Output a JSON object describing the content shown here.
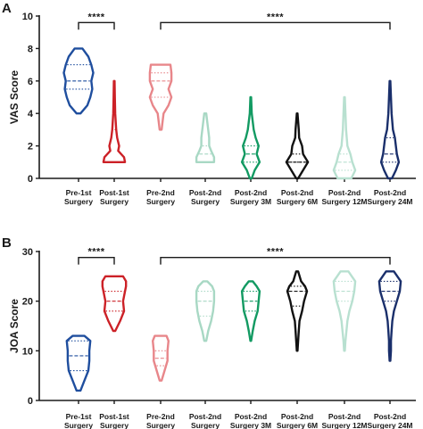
{
  "chart_data": [
    {
      "type": "violin",
      "panel": "A",
      "ylabel": "VAS Score",
      "ylim": [
        0,
        10
      ],
      "yticks": [
        "0",
        "2",
        "4",
        "6",
        "8",
        "10"
      ],
      "categories": [
        [
          "Pre-1st",
          "Surgery"
        ],
        [
          "Post-1st",
          "Surgery"
        ],
        [
          "Pre-2nd",
          "Surgery"
        ],
        [
          "Post-2nd",
          "Surgery"
        ],
        [
          "Post-2nd",
          "Surgery 3M"
        ],
        [
          "Post-2nd",
          "Surgery 6M"
        ],
        [
          "Post-2nd",
          "Surgery 12M"
        ],
        [
          "Post-2nd",
          "Surgery 24M"
        ]
      ],
      "series": [
        {
          "min": 4,
          "max": 8,
          "q1": 5.5,
          "median": 6,
          "q3": 7,
          "color": "#1f4e9e",
          "profile": [
            [
              4,
              0.1
            ],
            [
              4.5,
              0.45
            ],
            [
              5,
              0.6
            ],
            [
              5.5,
              0.7
            ],
            [
              6,
              0.65
            ],
            [
              6.5,
              0.75
            ],
            [
              7,
              0.65
            ],
            [
              7.5,
              0.5
            ],
            [
              8,
              0.2
            ]
          ]
        },
        {
          "min": 1,
          "max": 6,
          "q1": 1,
          "median": 1,
          "q3": 3,
          "color": "#cc2127",
          "profile": [
            [
              1,
              0.55
            ],
            [
              1.3,
              0.5
            ],
            [
              1.7,
              0.2
            ],
            [
              2,
              0.25
            ],
            [
              2.5,
              0.15
            ],
            [
              3,
              0.1
            ],
            [
              4,
              0.05
            ],
            [
              5,
              0.03
            ],
            [
              6,
              0.02
            ]
          ]
        },
        {
          "min": 3,
          "max": 7,
          "q1": 5,
          "median": 6,
          "q3": 6.5,
          "color": "#e8868a",
          "profile": [
            [
              3,
              0.05
            ],
            [
              4,
              0.15
            ],
            [
              4.5,
              0.4
            ],
            [
              5,
              0.55
            ],
            [
              5.5,
              0.4
            ],
            [
              6,
              0.55
            ],
            [
              6.5,
              0.55
            ],
            [
              7,
              0.5
            ]
          ]
        },
        {
          "min": 1,
          "max": 4,
          "q1": 1,
          "median": 1.5,
          "q3": 2,
          "color": "#a8d8c4",
          "profile": [
            [
              1,
              0.45
            ],
            [
              1.3,
              0.45
            ],
            [
              1.7,
              0.3
            ],
            [
              2,
              0.2
            ],
            [
              2.5,
              0.2
            ],
            [
              3,
              0.15
            ],
            [
              3.5,
              0.1
            ],
            [
              4,
              0.05
            ]
          ]
        },
        {
          "min": 0,
          "max": 5,
          "q1": 1,
          "median": 1.5,
          "q3": 2,
          "color": "#129a62",
          "profile": [
            [
              0,
              0.05
            ],
            [
              0.5,
              0.2
            ],
            [
              1,
              0.45
            ],
            [
              1.5,
              0.3
            ],
            [
              2,
              0.4
            ],
            [
              2.5,
              0.25
            ],
            [
              3,
              0.15
            ],
            [
              4,
              0.05
            ],
            [
              5,
              0.02
            ]
          ]
        },
        {
          "min": 0,
          "max": 4,
          "q1": 1,
          "median": 1,
          "q3": 1.5,
          "color": "#111111",
          "profile": [
            [
              0,
              0.05
            ],
            [
              0.5,
              0.3
            ],
            [
              1,
              0.55
            ],
            [
              1.5,
              0.3
            ],
            [
              2,
              0.25
            ],
            [
              2.5,
              0.1
            ],
            [
              3,
              0.08
            ],
            [
              3.5,
              0.05
            ],
            [
              4,
              0.02
            ]
          ]
        },
        {
          "min": 0,
          "max": 5,
          "q1": 0.5,
          "median": 1,
          "q3": 1.5,
          "color": "#b8e0d0",
          "profile": [
            [
              0,
              0.35
            ],
            [
              0.5,
              0.55
            ],
            [
              1,
              0.4
            ],
            [
              1.5,
              0.3
            ],
            [
              2,
              0.15
            ],
            [
              3,
              0.08
            ],
            [
              4,
              0.05
            ],
            [
              5,
              0.02
            ]
          ]
        },
        {
          "min": 0,
          "max": 6,
          "q1": 1,
          "median": 1.5,
          "q3": 2.5,
          "color": "#1a2f6b",
          "profile": [
            [
              0,
              0.1
            ],
            [
              0.5,
              0.3
            ],
            [
              1,
              0.45
            ],
            [
              1.5,
              0.35
            ],
            [
              2,
              0.3
            ],
            [
              2.5,
              0.25
            ],
            [
              3,
              0.15
            ],
            [
              4,
              0.08
            ],
            [
              5,
              0.05
            ],
            [
              6,
              0.02
            ]
          ]
        }
      ],
      "significance": [
        {
          "label": "****",
          "from": 0,
          "to": 1,
          "y": 9.6
        },
        {
          "label": "****",
          "from": 2,
          "to": 7,
          "y": 9.6
        }
      ]
    },
    {
      "type": "violin",
      "panel": "B",
      "ylabel": "JOA Score",
      "ylim": [
        0,
        30
      ],
      "yticks": [
        "0",
        "10",
        "20",
        "30"
      ],
      "categories": [
        [
          "Pre-1st",
          "Surgery"
        ],
        [
          "Post-1st",
          "Surgery"
        ],
        [
          "Pre-2nd",
          "Surgery"
        ],
        [
          "Post-2nd",
          "Surgery"
        ],
        [
          "Post-2nd",
          "Surgery 3M"
        ],
        [
          "Post-2nd",
          "Surgery 6M"
        ],
        [
          "Post-2nd",
          "Surgery 12M"
        ],
        [
          "Post-2nd",
          "Surgery 24M"
        ]
      ],
      "series": [
        {
          "min": 2,
          "max": 13,
          "q1": 6,
          "median": 9,
          "q3": 12,
          "color": "#1f4e9e",
          "profile": [
            [
              2,
              0.1
            ],
            [
              4,
              0.3
            ],
            [
              6,
              0.5
            ],
            [
              8,
              0.55
            ],
            [
              10,
              0.55
            ],
            [
              12,
              0.6
            ],
            [
              13,
              0.3
            ]
          ]
        },
        {
          "min": 14,
          "max": 25,
          "q1": 18,
          "median": 20,
          "q3": 22,
          "color": "#cc2127",
          "profile": [
            [
              14,
              0.05
            ],
            [
              16,
              0.3
            ],
            [
              18,
              0.5
            ],
            [
              20,
              0.45
            ],
            [
              22,
              0.55
            ],
            [
              23,
              0.6
            ],
            [
              24,
              0.6
            ],
            [
              25,
              0.45
            ]
          ]
        },
        {
          "min": 4,
          "max": 13,
          "q1": 7,
          "median": 8.5,
          "q3": 10,
          "color": "#e8868a",
          "profile": [
            [
              4,
              0.05
            ],
            [
              6,
              0.2
            ],
            [
              8,
              0.35
            ],
            [
              10,
              0.35
            ],
            [
              12,
              0.4
            ],
            [
              13,
              0.3
            ]
          ]
        },
        {
          "min": 12,
          "max": 24,
          "q1": 17,
          "median": 20,
          "q3": 22,
          "color": "#a8d8c4",
          "profile": [
            [
              12,
              0.05
            ],
            [
              14,
              0.15
            ],
            [
              16,
              0.3
            ],
            [
              18,
              0.4
            ],
            [
              20,
              0.45
            ],
            [
              22,
              0.45
            ],
            [
              23,
              0.35
            ],
            [
              24,
              0.1
            ]
          ]
        },
        {
          "min": 12,
          "max": 24,
          "q1": 18,
          "median": 20,
          "q3": 22,
          "color": "#129a62",
          "profile": [
            [
              12,
              0.02
            ],
            [
              14,
              0.1
            ],
            [
              16,
              0.2
            ],
            [
              18,
              0.35
            ],
            [
              20,
              0.4
            ],
            [
              22,
              0.45
            ],
            [
              23,
              0.3
            ],
            [
              24,
              0.1
            ]
          ]
        },
        {
          "min": 10,
          "max": 26,
          "q1": 19,
          "median": 22,
          "q3": 23,
          "color": "#111111",
          "profile": [
            [
              10,
              0.02
            ],
            [
              12,
              0.05
            ],
            [
              14,
              0.08
            ],
            [
              16,
              0.12
            ],
            [
              18,
              0.25
            ],
            [
              20,
              0.35
            ],
            [
              22,
              0.5
            ],
            [
              23,
              0.4
            ],
            [
              24,
              0.2
            ],
            [
              26,
              0.05
            ]
          ]
        },
        {
          "min": 10,
          "max": 26,
          "q1": 20,
          "median": 22,
          "q3": 24,
          "color": "#b8e0d0",
          "profile": [
            [
              10,
              0.02
            ],
            [
              12,
              0.05
            ],
            [
              14,
              0.1
            ],
            [
              16,
              0.15
            ],
            [
              18,
              0.25
            ],
            [
              20,
              0.4
            ],
            [
              22,
              0.5
            ],
            [
              24,
              0.55
            ],
            [
              26,
              0.2
            ]
          ]
        },
        {
          "min": 8,
          "max": 26,
          "q1": 20,
          "median": 22,
          "q3": 24,
          "color": "#1a2f6b",
          "profile": [
            [
              8,
              0.02
            ],
            [
              10,
              0.05
            ],
            [
              12,
              0.05
            ],
            [
              14,
              0.08
            ],
            [
              16,
              0.12
            ],
            [
              18,
              0.2
            ],
            [
              20,
              0.35
            ],
            [
              22,
              0.5
            ],
            [
              24,
              0.55
            ],
            [
              26,
              0.2
            ]
          ]
        }
      ],
      "significance": [
        {
          "label": "****",
          "from": 0,
          "to": 1,
          "y": 28.8
        },
        {
          "label": "****",
          "from": 2,
          "to": 7,
          "y": 28.8
        }
      ]
    }
  ]
}
